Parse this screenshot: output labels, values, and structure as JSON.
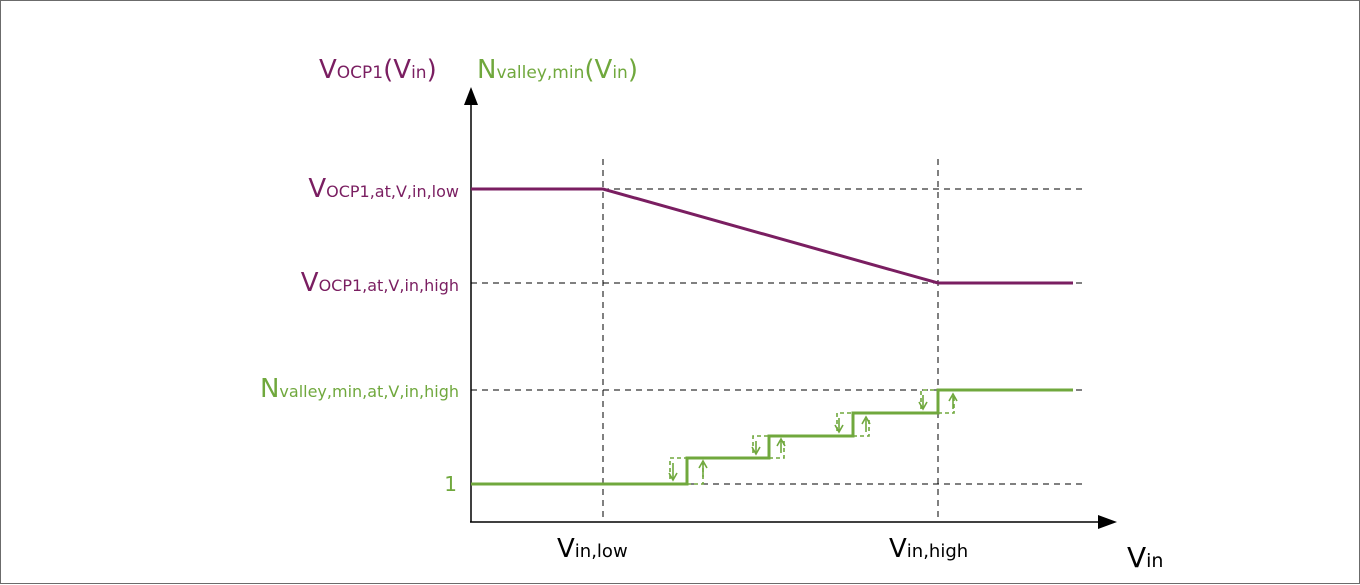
{
  "colors": {
    "vocp": "#7a1e61",
    "nvalley": "#70a83d",
    "axis": "#000000",
    "grid": "#000000"
  },
  "labels": {
    "y_vocp": {
      "main": "V",
      "sub": "OCP1",
      "paren_open": "(",
      "arg_main": "V",
      "arg_sub": "in",
      "paren_close": ")"
    },
    "y_nvalley": {
      "main": "N",
      "sub": "valley,min",
      "paren_open": "(",
      "arg_main": "V",
      "arg_sub": "in",
      "paren_close": ")"
    },
    "vocp_low": {
      "main": "V",
      "sub": "OCP1,at,V,in,low"
    },
    "vocp_high": {
      "main": "V",
      "sub": "OCP1,at,V,in,high"
    },
    "nvalley_high": {
      "main": "N",
      "sub": "valley,min,at,V,in,high"
    },
    "one": "1",
    "vin_low": {
      "main": "V",
      "sub": "in,low"
    },
    "vin_high": {
      "main": "V",
      "sub": "in,high"
    },
    "x_axis": {
      "main": "V",
      "sub": "in"
    }
  }
}
